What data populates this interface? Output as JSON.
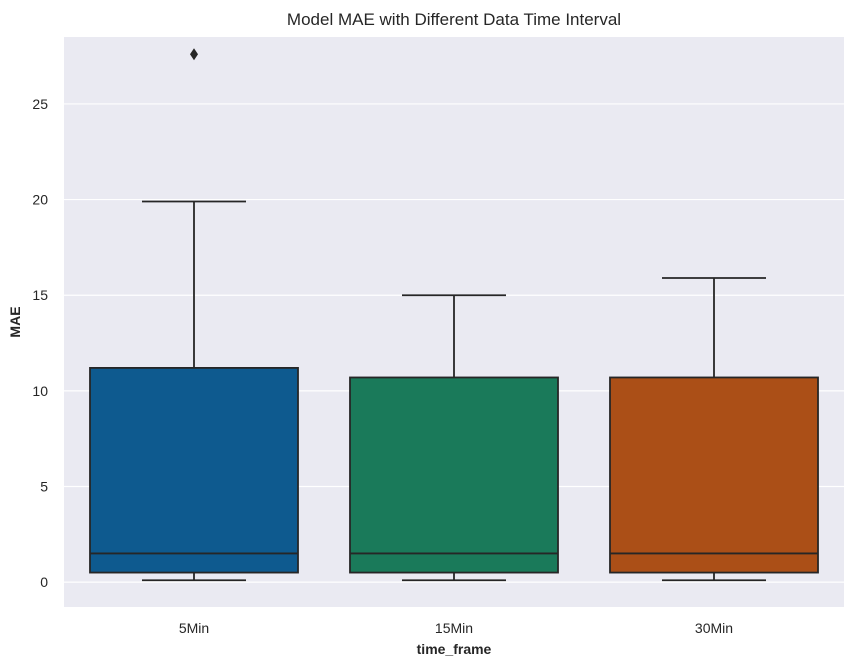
{
  "chart_data": {
    "type": "box",
    "title": "Model MAE with Different Data Time Interval",
    "xlabel": "time_frame",
    "ylabel": "MAE",
    "ylim": [
      -1.3,
      28.5
    ],
    "yticks": [
      0,
      5,
      10,
      15,
      20,
      25
    ],
    "grid": true,
    "categories": [
      "5Min",
      "15Min",
      "30Min"
    ],
    "boxes": [
      {
        "category": "5Min",
        "whisker_low": 0.1,
        "q1": 0.5,
        "median": 1.5,
        "q3": 11.2,
        "whisker_high": 19.9,
        "outliers": [
          27.6
        ],
        "color": "#0e5a8f"
      },
      {
        "category": "15Min",
        "whisker_low": 0.1,
        "q1": 0.5,
        "median": 1.5,
        "q3": 10.7,
        "whisker_high": 15.0,
        "outliers": [],
        "color": "#1a7a5a"
      },
      {
        "category": "30Min",
        "whisker_low": 0.1,
        "q1": 0.5,
        "median": 1.5,
        "q3": 10.7,
        "whisker_high": 15.9,
        "outliers": [],
        "color": "#ab4f17"
      }
    ],
    "style": {
      "background": "#eaeaf2",
      "grid_color": "#ffffff",
      "line_color": "#262626"
    }
  }
}
